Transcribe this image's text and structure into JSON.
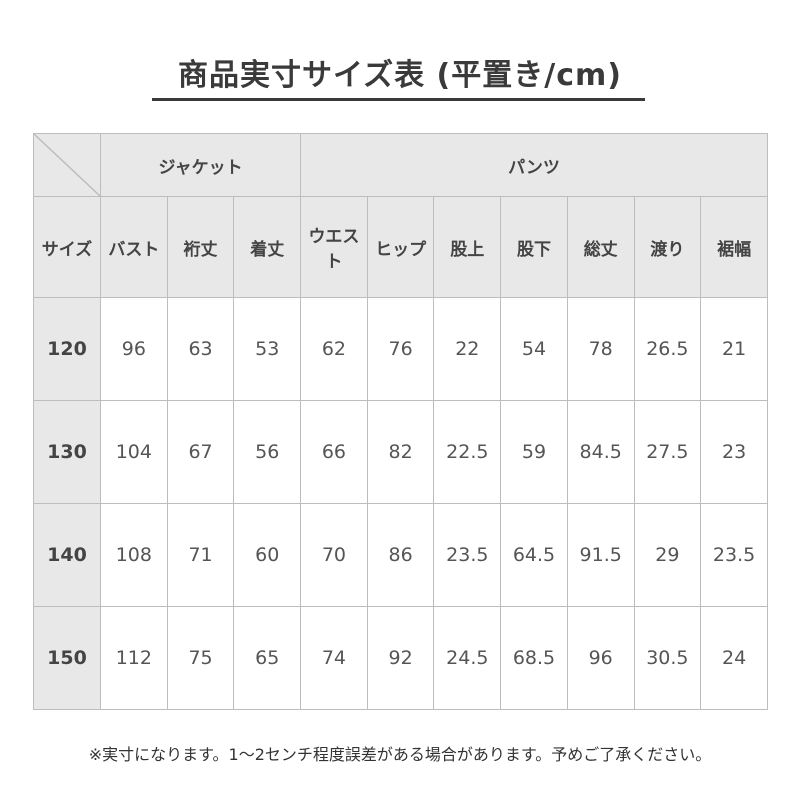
{
  "title": "商品実寸サイズ表 (平置き/cm)",
  "groups": {
    "jacket": "ジャケット",
    "pants": "パンツ"
  },
  "columns": [
    "サイズ",
    "バスト",
    "裄丈",
    "着丈",
    "ウエスト",
    "ヒップ",
    "股上",
    "股下",
    "総丈",
    "渡り",
    "裾幅"
  ],
  "rows": [
    [
      "120",
      "96",
      "63",
      "53",
      "62",
      "76",
      "22",
      "54",
      "78",
      "26.5",
      "21"
    ],
    [
      "130",
      "104",
      "67",
      "56",
      "66",
      "82",
      "22.5",
      "59",
      "84.5",
      "27.5",
      "23"
    ],
    [
      "140",
      "108",
      "71",
      "60",
      "70",
      "86",
      "23.5",
      "64.5",
      "91.5",
      "29",
      "23.5"
    ],
    [
      "150",
      "112",
      "75",
      "65",
      "74",
      "92",
      "24.5",
      "68.5",
      "96",
      "30.5",
      "24"
    ]
  ],
  "note": "※実寸になります。1～2センチ程度誤差がある場合があります。予めご了承ください。",
  "colors": {
    "header_bg": "#e8e8e8",
    "border": "#bdbdbd",
    "text": "#444444"
  }
}
